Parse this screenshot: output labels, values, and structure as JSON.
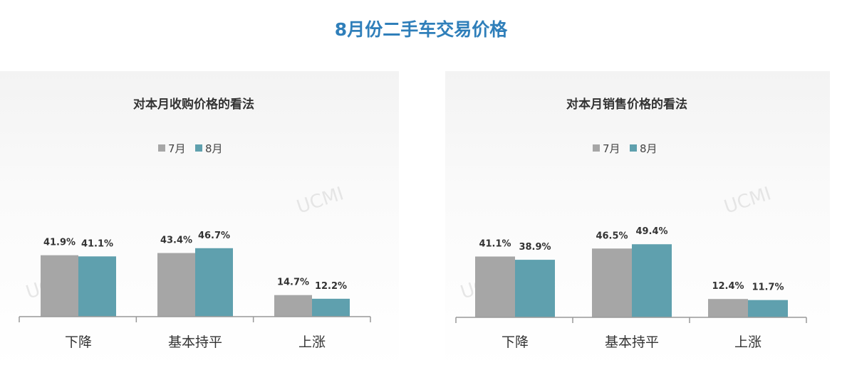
{
  "title": "8月份二手车交易价格",
  "watermark": "UCMI",
  "colors": {
    "7月": "#a6a6a6",
    "8月": "#5fa0ae",
    "title": "#2f7fba"
  },
  "chart_data": [
    {
      "type": "bar",
      "title": "对本月收购价格的看法",
      "categories": [
        "下降",
        "基本持平",
        "上涨"
      ],
      "series": [
        {
          "name": "7月",
          "values": [
            41.9,
            43.4,
            14.7
          ],
          "labels": [
            "41.9%",
            "43.4%",
            "14.7%"
          ]
        },
        {
          "name": "8月",
          "values": [
            41.1,
            46.7,
            12.2
          ],
          "labels": [
            "41.1%",
            "46.7%",
            "12.2%"
          ]
        }
      ],
      "legend": "top",
      "grid": false
    },
    {
      "type": "bar",
      "title": "对本月销售价格的看法",
      "categories": [
        "下降",
        "基本持平",
        "上涨"
      ],
      "series": [
        {
          "name": "7月",
          "values": [
            41.1,
            46.5,
            12.4
          ],
          "labels": [
            "41.1%",
            "46.5%",
            "12.4%"
          ]
        },
        {
          "name": "8月",
          "values": [
            38.9,
            49.4,
            11.7
          ],
          "labels": [
            "38.9%",
            "49.4%",
            "11.7%"
          ]
        }
      ],
      "legend": "top",
      "grid": false
    }
  ]
}
